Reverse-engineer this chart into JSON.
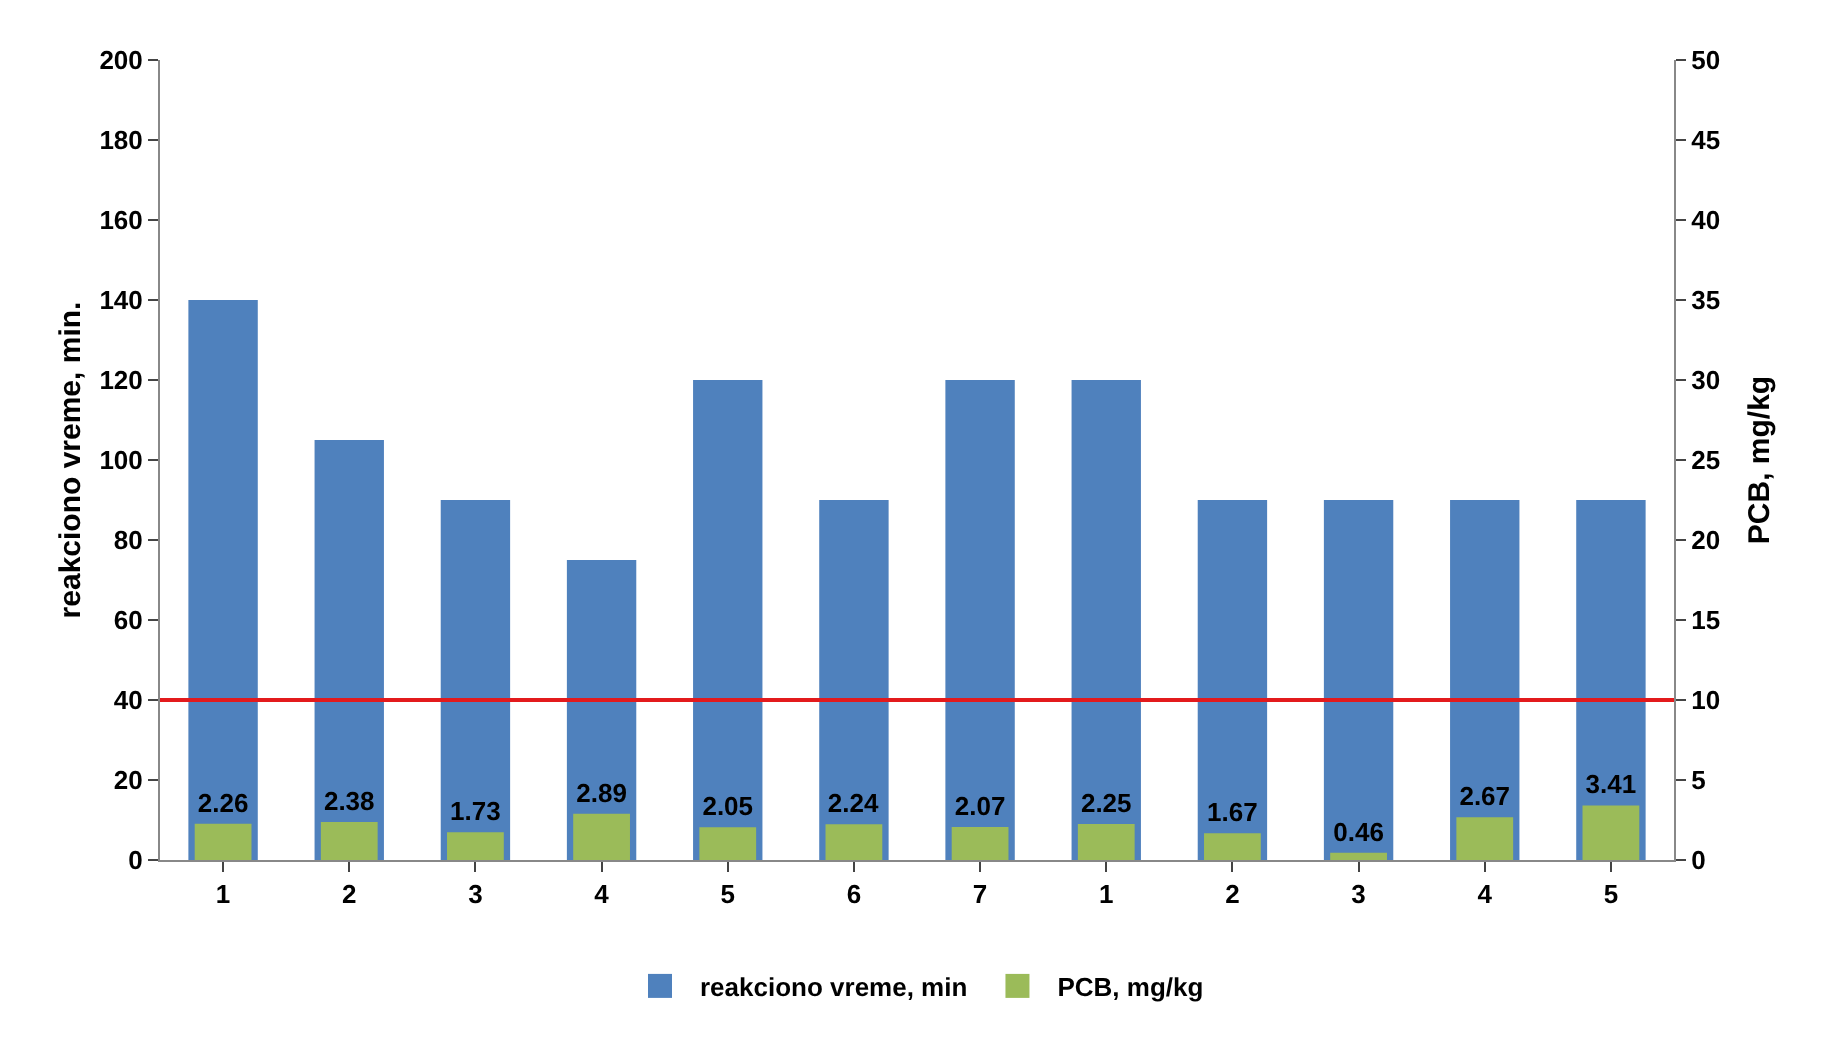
{
  "chart_data": {
    "type": "bar",
    "categories": [
      "1",
      "2",
      "3",
      "4",
      "5",
      "6",
      "7",
      "1",
      "2",
      "3",
      "4",
      "5"
    ],
    "series": [
      {
        "name": "reakciono vreme, min",
        "color": "#4f81bd",
        "values": [
          140,
          105,
          90,
          75,
          120,
          90,
          120,
          120,
          90,
          90,
          90,
          90
        ]
      },
      {
        "name": "PCB, mg/kg",
        "color": "#9bbb59",
        "axis": "y2",
        "values": [
          2.26,
          2.38,
          1.73,
          2.89,
          2.05,
          2.24,
          2.07,
          2.25,
          1.67,
          0.46,
          2.67,
          3.41
        ],
        "value_labels": [
          "2.26",
          "2.38",
          "1.73",
          "2.89",
          "2.05",
          "2.24",
          "2.07",
          "2.25",
          "1.67",
          "0.46",
          "2.67",
          "3.41"
        ]
      }
    ],
    "ylabel": "reakciono vreme, min.",
    "y2label": "PCB, mg/kg",
    "ylim": [
      0,
      200
    ],
    "yticks": [
      0,
      20,
      40,
      60,
      80,
      100,
      120,
      140,
      160,
      180,
      200
    ],
    "y2lim": [
      0,
      50
    ],
    "y2ticks": [
      0,
      5,
      10,
      15,
      20,
      25,
      30,
      35,
      40,
      45,
      50
    ],
    "ref_lines": [
      {
        "axis": "y2",
        "value": 10,
        "color": "#e31a1c"
      }
    ],
    "grid": false,
    "legend": "bottom"
  }
}
